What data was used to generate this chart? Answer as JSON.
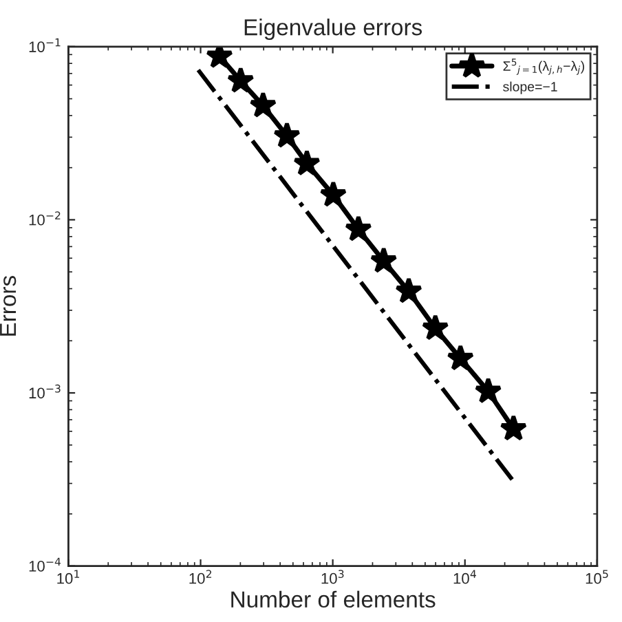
{
  "chart_data": {
    "type": "line",
    "title": "Eigenvalue errors",
    "xlabel": "Number of elements",
    "ylabel": "Errors",
    "log": "xy",
    "grid": false,
    "legend": "top right",
    "xlim": [
      10,
      100000
    ],
    "ylim": [
      0.0001,
      0.1
    ],
    "xticks": [
      {
        "value": 10,
        "label": "10$^{1}$"
      },
      {
        "value": 100,
        "label": "10$^{2}$"
      },
      {
        "value": 1000,
        "label": "10$^{3}$"
      },
      {
        "value": 10000,
        "label": "10$^{4}$"
      },
      {
        "value": 100000,
        "label": "10$^{5}$"
      }
    ],
    "yticks": [
      {
        "value": 0.0001,
        "label": "10$^{−4}$"
      },
      {
        "value": 0.001,
        "label": "10$^{−3}$"
      },
      {
        "value": 0.01,
        "label": "10$^{−2}$"
      },
      {
        "value": 0.1,
        "label": "10$^{−1}$"
      }
    ],
    "series": [
      {
        "name": "Σ$^{5}$$_{j=1}$(λ$_{j,h}$−λ$_{j}$)",
        "color": "#000000",
        "marker": "star",
        "line_style": "solid",
        "x": [
          139,
          201,
          297,
          450,
          637,
          1009,
          1563,
          2428,
          3758,
          5970,
          9250,
          15000,
          23300
        ],
        "values": [
          0.088,
          0.0634,
          0.0456,
          0.0305,
          0.0211,
          0.0139,
          0.0088,
          0.00578,
          0.00386,
          0.00236,
          0.00158,
          0.00102,
          0.00062
        ]
      },
      {
        "name": "slope=−1",
        "color": "#000000",
        "marker": "none",
        "line_style": "dashdot",
        "x": [
          96,
          22750
        ],
        "values": [
          0.0733,
          0.000316
        ]
      }
    ]
  }
}
